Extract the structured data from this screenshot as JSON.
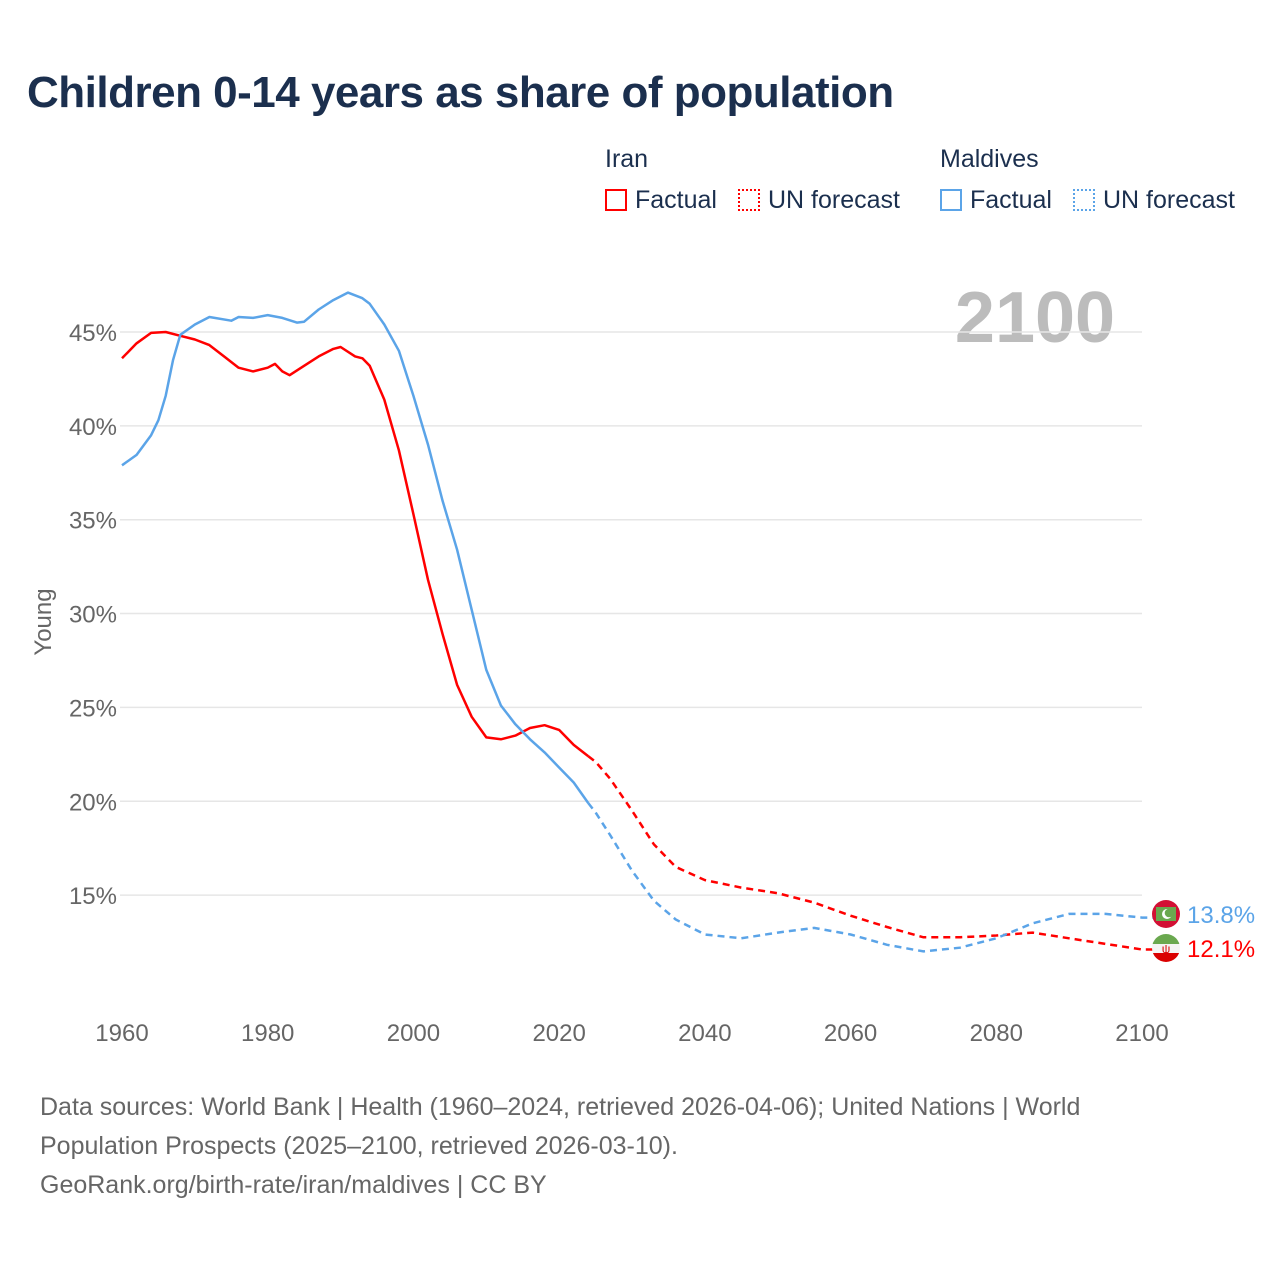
{
  "title": "Children 0-14 years as share of population",
  "legend": {
    "groups": [
      {
        "country": "Iran",
        "factual": "Factual",
        "forecast": "UN forecast",
        "color": "#ff0000"
      },
      {
        "country": "Maldives",
        "factual": "Factual",
        "forecast": "UN forecast",
        "color": "#5ba4e8"
      }
    ]
  },
  "sources": {
    "line1": "Data sources: World Bank | Health (1960–2024, retrieved 2026-04-06); United Nations | World",
    "line2": "Population Prospects (2025–2100, retrieved 2026-03-10).",
    "line3": "GeoRank.org/birth-rate/iran/maldives | CC BY"
  },
  "chart_data": {
    "type": "line",
    "title": "Children 0-14 years as share of population",
    "xlabel": "",
    "ylabel": "Young",
    "year_label": "2100",
    "xlim": [
      1960,
      2100
    ],
    "ylim": [
      10,
      48
    ],
    "x_ticks": [
      "1960",
      "1980",
      "2000",
      "2020",
      "2040",
      "2060",
      "2080",
      "2100"
    ],
    "y_ticks": [
      {
        "v": 15,
        "label": "15%"
      },
      {
        "v": 20,
        "label": "20%"
      },
      {
        "v": 25,
        "label": "25%"
      },
      {
        "v": 30,
        "label": "30%"
      },
      {
        "v": 35,
        "label": "35%"
      },
      {
        "v": 40,
        "label": "40%"
      },
      {
        "v": 45,
        "label": "45%"
      }
    ],
    "forecast_start": 2024,
    "series": [
      {
        "name": "Iran",
        "color": "#ff0000",
        "end_label": "12.1%",
        "points": [
          [
            1960,
            43.6
          ],
          [
            1962,
            44.4
          ],
          [
            1964,
            44.95
          ],
          [
            1966,
            45.0
          ],
          [
            1968,
            44.8
          ],
          [
            1970,
            44.6
          ],
          [
            1972,
            44.3
          ],
          [
            1974,
            43.7
          ],
          [
            1976,
            43.1
          ],
          [
            1978,
            42.9
          ],
          [
            1980,
            43.1
          ],
          [
            1981,
            43.3
          ],
          [
            1982,
            42.9
          ],
          [
            1983,
            42.7
          ],
          [
            1985,
            43.2
          ],
          [
            1987,
            43.7
          ],
          [
            1989,
            44.1
          ],
          [
            1990,
            44.2
          ],
          [
            1992,
            43.7
          ],
          [
            1993,
            43.6
          ],
          [
            1994,
            43.2
          ],
          [
            1996,
            41.4
          ],
          [
            1998,
            38.7
          ],
          [
            2000,
            35.3
          ],
          [
            2002,
            31.8
          ],
          [
            2004,
            28.9
          ],
          [
            2006,
            26.2
          ],
          [
            2008,
            24.5
          ],
          [
            2010,
            23.4
          ],
          [
            2012,
            23.3
          ],
          [
            2014,
            23.5
          ],
          [
            2016,
            23.9
          ],
          [
            2018,
            24.05
          ],
          [
            2020,
            23.8
          ],
          [
            2022,
            23.0
          ],
          [
            2024,
            22.4
          ],
          [
            2025,
            22.1
          ],
          [
            2027,
            21.2
          ],
          [
            2030,
            19.5
          ],
          [
            2033,
            17.7
          ],
          [
            2036,
            16.5
          ],
          [
            2040,
            15.8
          ],
          [
            2045,
            15.4
          ],
          [
            2050,
            15.1
          ],
          [
            2055,
            14.6
          ],
          [
            2060,
            13.9
          ],
          [
            2065,
            13.3
          ],
          [
            2070,
            12.75
          ],
          [
            2075,
            12.75
          ],
          [
            2080,
            12.85
          ],
          [
            2085,
            13.0
          ],
          [
            2090,
            12.7
          ],
          [
            2095,
            12.4
          ],
          [
            2100,
            12.1
          ]
        ]
      },
      {
        "name": "Maldives",
        "color": "#5ba4e8",
        "end_label": "13.8%",
        "points": [
          [
            1960,
            37.9
          ],
          [
            1962,
            38.45
          ],
          [
            1964,
            39.5
          ],
          [
            1965,
            40.3
          ],
          [
            1966,
            41.6
          ],
          [
            1967,
            43.5
          ],
          [
            1968,
            44.85
          ],
          [
            1970,
            45.4
          ],
          [
            1972,
            45.8
          ],
          [
            1975,
            45.6
          ],
          [
            1976,
            45.8
          ],
          [
            1978,
            45.75
          ],
          [
            1980,
            45.9
          ],
          [
            1982,
            45.75
          ],
          [
            1984,
            45.5
          ],
          [
            1985,
            45.55
          ],
          [
            1987,
            46.2
          ],
          [
            1989,
            46.7
          ],
          [
            1991,
            47.1
          ],
          [
            1993,
            46.8
          ],
          [
            1994,
            46.5
          ],
          [
            1996,
            45.4
          ],
          [
            1998,
            44.0
          ],
          [
            2000,
            41.6
          ],
          [
            2002,
            39.0
          ],
          [
            2004,
            36.0
          ],
          [
            2006,
            33.4
          ],
          [
            2008,
            30.2
          ],
          [
            2010,
            27.0
          ],
          [
            2012,
            25.1
          ],
          [
            2014,
            24.1
          ],
          [
            2016,
            23.3
          ],
          [
            2018,
            22.6
          ],
          [
            2020,
            21.8
          ],
          [
            2022,
            21.0
          ],
          [
            2024,
            19.9
          ],
          [
            2025,
            19.4
          ],
          [
            2027,
            18.2
          ],
          [
            2030,
            16.3
          ],
          [
            2033,
            14.7
          ],
          [
            2036,
            13.7
          ],
          [
            2040,
            12.9
          ],
          [
            2045,
            12.7
          ],
          [
            2050,
            13.0
          ],
          [
            2055,
            13.25
          ],
          [
            2060,
            12.9
          ],
          [
            2065,
            12.35
          ],
          [
            2070,
            12.0
          ],
          [
            2075,
            12.2
          ],
          [
            2080,
            12.7
          ],
          [
            2085,
            13.5
          ],
          [
            2090,
            14.0
          ],
          [
            2095,
            14.0
          ],
          [
            2100,
            13.8
          ]
        ]
      }
    ]
  }
}
